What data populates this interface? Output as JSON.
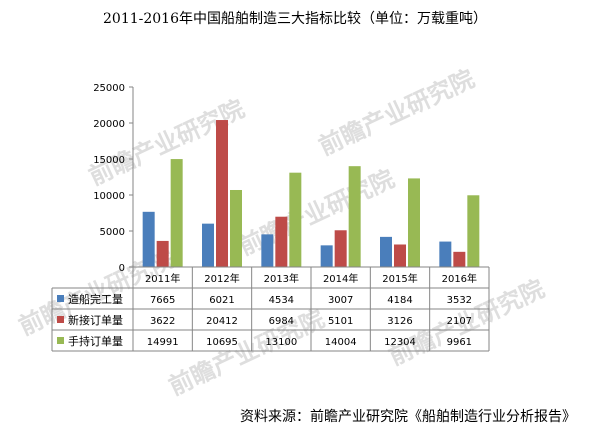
{
  "title": "2011-2016年中国船舶制造三大指标比较（单位：万载重吨）",
  "source": "资料来源：前瞻产业研究院《船舶制造行业分析报告》",
  "watermark": "前瞻产业研究院",
  "chart_data": {
    "type": "bar",
    "title": "2011-2016年中国船舶制造三大指标比较（单位：万载重吨）",
    "categories": [
      "2011年",
      "2012年",
      "2013年",
      "2014年",
      "2015年",
      "2016年"
    ],
    "series": [
      {
        "name": "造船完工量",
        "color": "#4a7ebb",
        "values": [
          7665,
          6021,
          4534,
          3007,
          4184,
          3532
        ]
      },
      {
        "name": "新接订单量",
        "color": "#be4b48",
        "values": [
          3622,
          20412,
          6984,
          5101,
          3126,
          2107
        ]
      },
      {
        "name": "手持订单量",
        "color": "#98b954",
        "values": [
          14991,
          10695,
          13100,
          14004,
          12304,
          9961
        ]
      }
    ],
    "yticks": [
      "25000",
      "20000",
      "15000",
      "10000",
      "5000",
      "0"
    ],
    "ylim": [
      0,
      25000
    ],
    "legend": "data-table",
    "grid": false
  }
}
